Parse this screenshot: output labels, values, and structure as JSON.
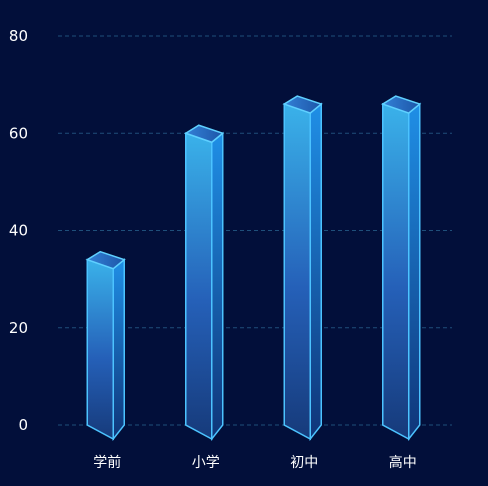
{
  "chart_data": {
    "type": "bar",
    "style": "3d-cuboid",
    "categories": [
      "学前",
      "小学",
      "初中",
      "高中"
    ],
    "values": [
      34,
      60,
      66,
      66
    ],
    "y_ticks": [
      "0",
      "20",
      "40",
      "60",
      "80"
    ],
    "ylim": [
      0,
      80
    ],
    "grid": "dashed horizontal",
    "legend": "none",
    "colors": {
      "background": "#020f3a",
      "grid": "#1f4f7a",
      "tick_text": "#ffffff",
      "bar_top": "#5fd0ff",
      "bar_bottom": "#1e3d86",
      "bar_edge": "#4cc3ff",
      "bar_cap": "#2a6fc4"
    }
  }
}
